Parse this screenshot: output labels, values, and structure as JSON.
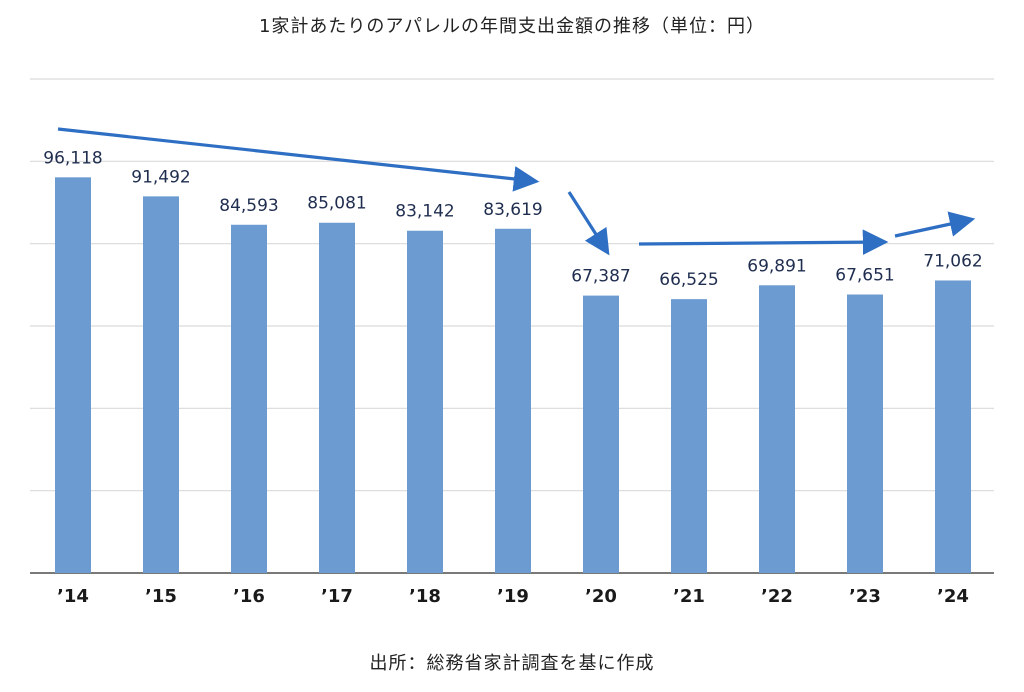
{
  "chart_data": {
    "type": "bar",
    "title": "1家計あたりのアパレルの年間支出金額の推移（単位：円）",
    "xlabel": "",
    "ylabel": "",
    "categories": [
      "'14",
      "'15",
      "'16",
      "'17",
      "'18",
      "'19",
      "'20",
      "'21",
      "'22",
      "'23",
      "'24"
    ],
    "values": [
      96118,
      91492,
      84593,
      85081,
      83142,
      83619,
      67387,
      66525,
      69891,
      67651,
      71062
    ],
    "value_labels": [
      "96,118",
      "91,492",
      "84,593",
      "85,081",
      "83,142",
      "83,619",
      "67,387",
      "66,525",
      "69,891",
      "67,651",
      "71,062"
    ],
    "ylim": [
      0,
      120000
    ],
    "grid": true,
    "bar_color": "#6b9bd1",
    "arrow_color": "#2e6fc4",
    "trend_arrows": [
      {
        "from_category": "'14",
        "to_category": "'19",
        "note": "decline"
      },
      {
        "from_category": "'19",
        "to_category": "'20",
        "note": "drop"
      },
      {
        "from_category": "'20",
        "to_category": "'23",
        "note": "flat"
      },
      {
        "from_category": "'23",
        "to_category": "'24",
        "note": "rise"
      }
    ]
  },
  "source": "出所：総務省家計調査を基に作成"
}
